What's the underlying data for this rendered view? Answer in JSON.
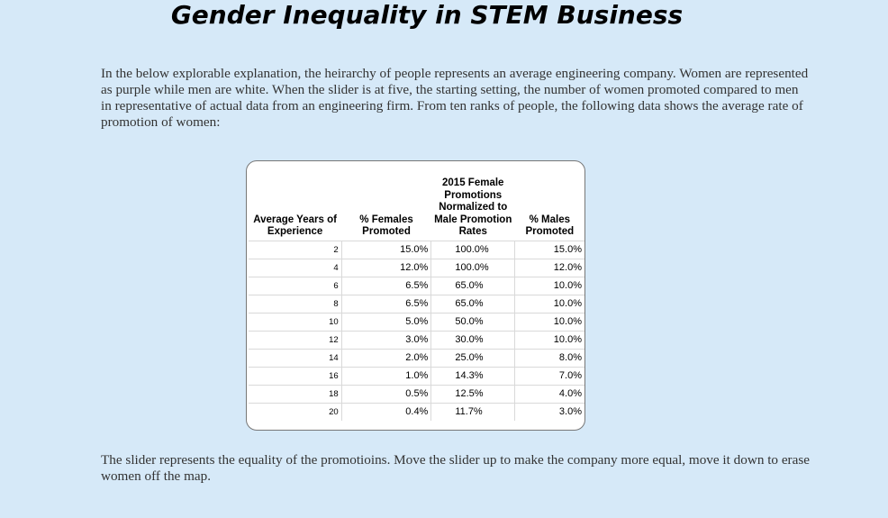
{
  "page": {
    "title": "Gender Inequality in STEM Business",
    "intro": "In the below explorable explanation, the heirarchy of people represents an average engineering company. Women are represented as purple while men are white. When the slider is at five, the starting setting, the number of women promoted compared to men in representative of actual data from an engineering firm. From ten ranks of people, the following data shows the average rate of promotion of women:",
    "outro": "The slider represents the equality of the promotioins. Move the slider up to make the company more equal, move it down to erase women off the map."
  },
  "table": {
    "headers": [
      "Average Years of Experience",
      "% Females Promoted",
      "2015 Female Promotions Normalized to Male Promotion Rates",
      "% Males Promoted"
    ],
    "rows": [
      [
        "2",
        "15.0%",
        "100.0%",
        "15.0%"
      ],
      [
        "4",
        "12.0%",
        "100.0%",
        "12.0%"
      ],
      [
        "6",
        "6.5%",
        "65.0%",
        "10.0%"
      ],
      [
        "8",
        "6.5%",
        "65.0%",
        "10.0%"
      ],
      [
        "10",
        "5.0%",
        "50.0%",
        "10.0%"
      ],
      [
        "12",
        "3.0%",
        "30.0%",
        "10.0%"
      ],
      [
        "14",
        "2.0%",
        "25.0%",
        "8.0%"
      ],
      [
        "16",
        "1.0%",
        "14.3%",
        "7.0%"
      ],
      [
        "18",
        "0.5%",
        "12.5%",
        "4.0%"
      ],
      [
        "20",
        "0.4%",
        "11.7%",
        "3.0%"
      ]
    ]
  },
  "colors": {
    "background": "#d6e9f8",
    "table_background": "#ffffff"
  }
}
